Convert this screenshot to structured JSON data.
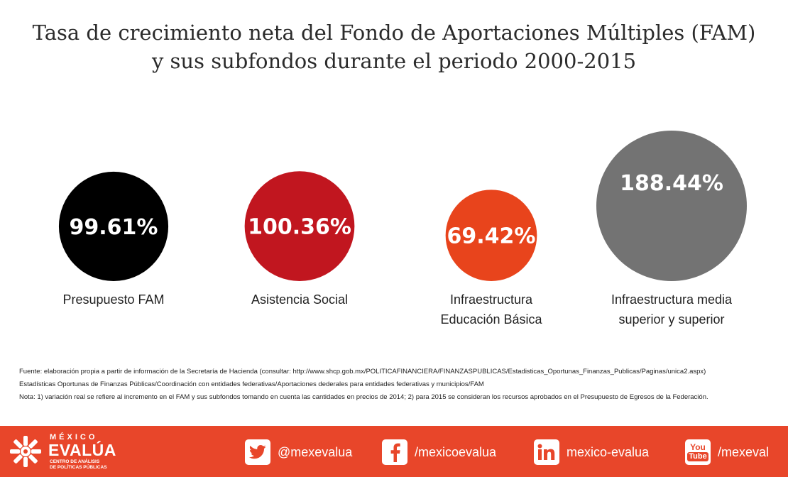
{
  "header": {
    "title_line1": "Tasa de crecimiento neta del Fondo de Aportaciones Múltiples (FAM)",
    "title_line2": "y sus subfondos durante el periodo 2000-2015"
  },
  "chart_data": {
    "type": "bubble",
    "categories": [
      "Presupuesto FAM",
      "Asistencia Social",
      "Infraestructura\nEducación Básica",
      "Infraestructura media\nsuperior y superior"
    ],
    "values": [
      99.61,
      100.36,
      69.42,
      188.44
    ],
    "value_labels": [
      "99.61%",
      "100.36%",
      "69.42%",
      "188.44%"
    ],
    "colors": [
      "#000000",
      "#c1161f",
      "#e8441c",
      "#737373"
    ],
    "unit": "%"
  },
  "notes": {
    "line1": "Fuente: elaboración propia a partir de información de la Secretaría de Hacienda (consultar: http://www.shcp.gob.mx/POLITICAFINANCIERA/FINANZASPUBLICAS/Estadisticas_Oportunas_Finanzas_Publicas/Paginas/unica2.aspx)",
    "line2": "Estadísticas Oportunas de Finanzas Públicas/Coordinación con entidades federativas/Aportaciones dederales para entidades federativas y municipios/FAM",
    "line3": "Nota: 1) variación real se refiere al incremento en el FAM y sus subfondos tomando en cuenta las cantidades en precios de 2014; 2) para 2015 se consideran los recursos aprobados en el Presupuesto de Egresos de la Federación."
  },
  "footer": {
    "background": "#e8462a",
    "logo": {
      "top": "MÉXICO",
      "main": "EVALÚA",
      "sub1": "CENTRO DE ANÁLISIS",
      "sub2": "DE POLÍTICAS PÚBLICAS"
    },
    "social": [
      {
        "icon": "twitter-icon",
        "handle": "@mexevalua"
      },
      {
        "icon": "facebook-icon",
        "handle": "/mexicoevalua"
      },
      {
        "icon": "linkedin-icon",
        "handle": "mexico-evalua"
      },
      {
        "icon": "youtube-icon",
        "icon_text1": "You",
        "icon_text2": "Tube",
        "handle": "/mexeval"
      }
    ]
  }
}
